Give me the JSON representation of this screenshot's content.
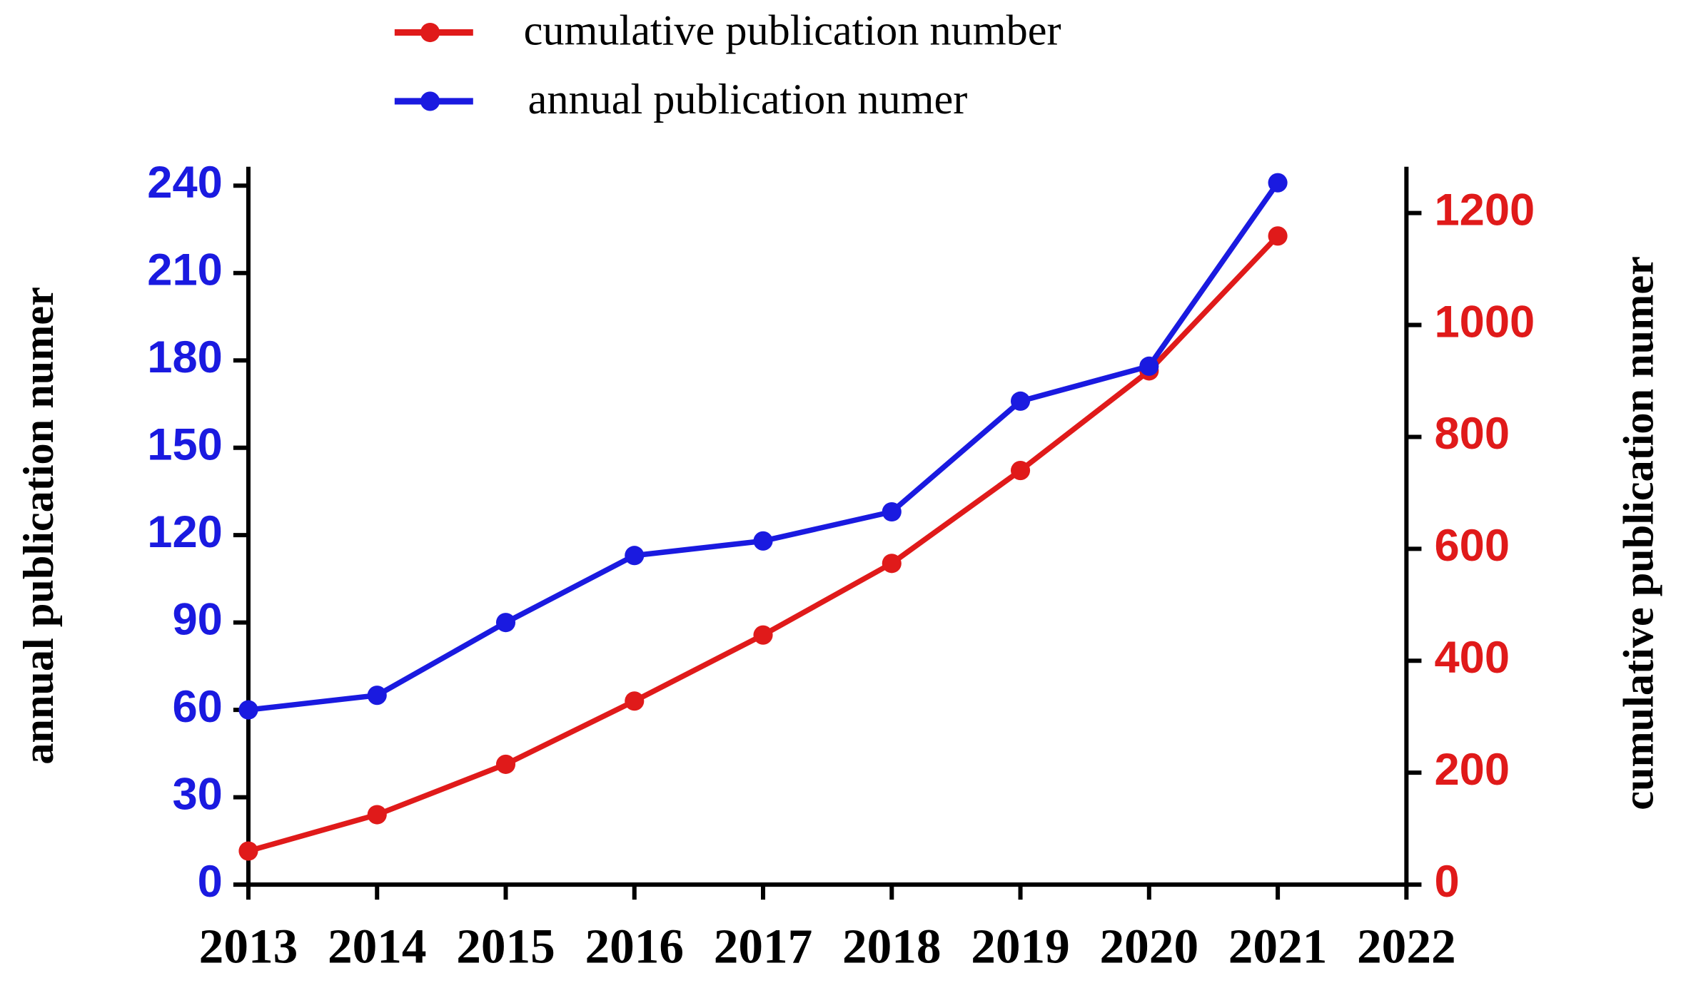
{
  "chart_data": {
    "type": "line",
    "x": [
      2013,
      2014,
      2015,
      2016,
      2017,
      2018,
      2019,
      2020,
      2021
    ],
    "xlim": [
      2013,
      2022
    ],
    "xticks": [
      2013,
      2014,
      2015,
      2016,
      2017,
      2018,
      2019,
      2020,
      2021,
      2022
    ],
    "ylabel": "annual publication numer",
    "y2label": "cumulative publication numer",
    "ylim": [
      0,
      245
    ],
    "yticks": [
      0,
      30,
      60,
      90,
      120,
      150,
      180,
      210,
      240
    ],
    "y2lim": [
      0,
      1275
    ],
    "y2ticks": [
      0,
      200,
      400,
      600,
      800,
      1000,
      1200
    ],
    "y_color": "#1a1ae0",
    "y2_color": "#e01a1a",
    "legend": "top",
    "series": [
      {
        "name": "cumulative publication number",
        "color": "#e01a1a",
        "axis": "y2",
        "values": [
          60,
          125,
          215,
          328,
          446,
          574,
          740,
          918,
          1159
        ]
      },
      {
        "name": "annual publication numer",
        "color": "#1a1ae0",
        "values": [
          60,
          65,
          90,
          113,
          118,
          128,
          166,
          178,
          241
        ]
      }
    ]
  }
}
